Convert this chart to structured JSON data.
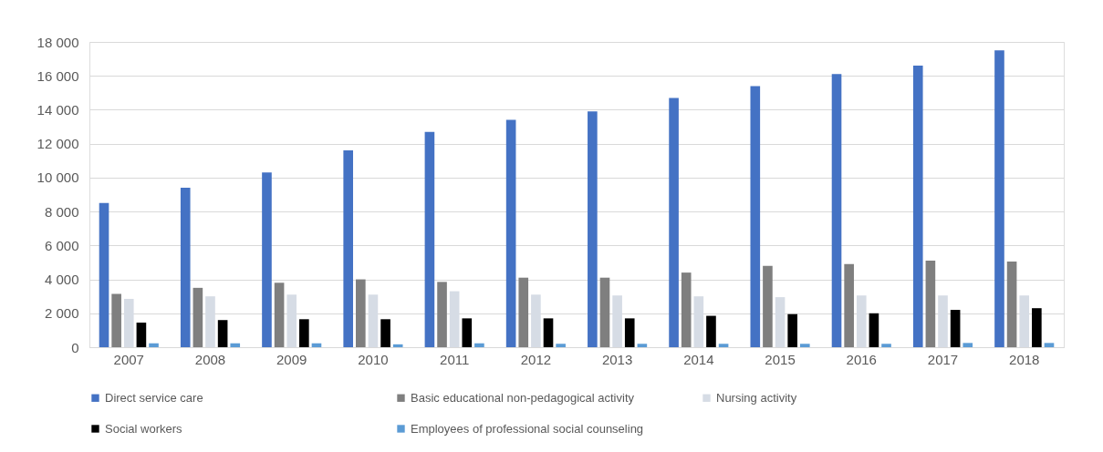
{
  "chart_data": {
    "type": "bar",
    "categories": [
      "2007",
      "2008",
      "2009",
      "2010",
      "2011",
      "2012",
      "2013",
      "2014",
      "2015",
      "2016",
      "2017",
      "2018"
    ],
    "series": [
      {
        "name": "Direct service care",
        "color": "#4472c4",
        "values": [
          8500,
          9400,
          10300,
          11600,
          12700,
          13400,
          13900,
          14700,
          15400,
          16100,
          16600,
          17500
        ]
      },
      {
        "name": "Basic educational non-pedagogical activity",
        "color": "#7f7f7f",
        "values": [
          3150,
          3500,
          3800,
          4000,
          3850,
          4100,
          4100,
          4400,
          4800,
          4900,
          5100,
          5050
        ]
      },
      {
        "name": "Nursing activity",
        "color": "#d6dce5",
        "values": [
          2850,
          3000,
          3100,
          3100,
          3300,
          3100,
          3050,
          3000,
          2950,
          3050,
          3050,
          3050
        ]
      },
      {
        "name": "Social workers",
        "color": "#000000",
        "values": [
          1450,
          1600,
          1650,
          1650,
          1700,
          1700,
          1700,
          1850,
          1950,
          2000,
          2200,
          2300
        ]
      },
      {
        "name": "Employees of professional social counseling",
        "color": "#5b9bd5",
        "values": [
          230,
          230,
          230,
          170,
          230,
          200,
          200,
          200,
          200,
          200,
          250,
          250
        ]
      }
    ],
    "ylim": [
      0,
      18000
    ],
    "yticks": [
      {
        "value": 0,
        "label": "0"
      },
      {
        "value": 2000,
        "label": "2 000"
      },
      {
        "value": 4000,
        "label": "4 000"
      },
      {
        "value": 6000,
        "label": "6 000"
      },
      {
        "value": 8000,
        "label": "8 000"
      },
      {
        "value": 10000,
        "label": "10 000"
      },
      {
        "value": 12000,
        "label": "12 000"
      },
      {
        "value": 14000,
        "label": "14 000"
      },
      {
        "value": 16000,
        "label": "16 000"
      },
      {
        "value": 18000,
        "label": "18 000"
      }
    ],
    "grid": "y",
    "legend": "bottom"
  }
}
